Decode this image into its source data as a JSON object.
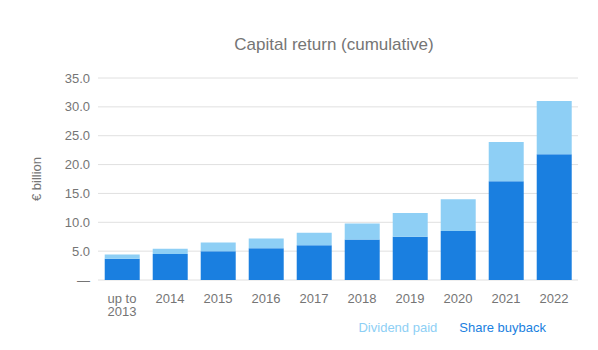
{
  "chart_data": {
    "type": "bar",
    "title": "Capital return (cumulative)",
    "y_label": "€ billion",
    "categories": [
      "up to 2013",
      "2014",
      "2015",
      "2016",
      "2017",
      "2018",
      "2019",
      "2020",
      "2021",
      "2022"
    ],
    "series": [
      {
        "name": "Share buyback",
        "color": "#1a7fe0",
        "values": [
          3.7,
          4.5,
          5.0,
          5.5,
          6.0,
          7.0,
          7.5,
          8.5,
          17.1,
          21.8
        ]
      },
      {
        "name": "Dividend paid",
        "color": "#8ecff5",
        "values": [
          0.7,
          0.9,
          1.5,
          1.7,
          2.2,
          2.8,
          4.1,
          5.5,
          6.8,
          9.2
        ]
      }
    ],
    "stacked": true,
    "ylim": [
      0,
      35
    ],
    "yticks": [
      {
        "value": 0,
        "label": "—"
      },
      {
        "value": 5,
        "label": "5.0"
      },
      {
        "value": 10,
        "label": "10.0"
      },
      {
        "value": 15,
        "label": "15.0"
      },
      {
        "value": 20,
        "label": "20.0"
      },
      {
        "value": 25,
        "label": "25.0"
      },
      {
        "value": 30,
        "label": "30.0"
      },
      {
        "value": 35,
        "label": "35.0"
      }
    ],
    "grid": true,
    "legend": "bottom right"
  }
}
